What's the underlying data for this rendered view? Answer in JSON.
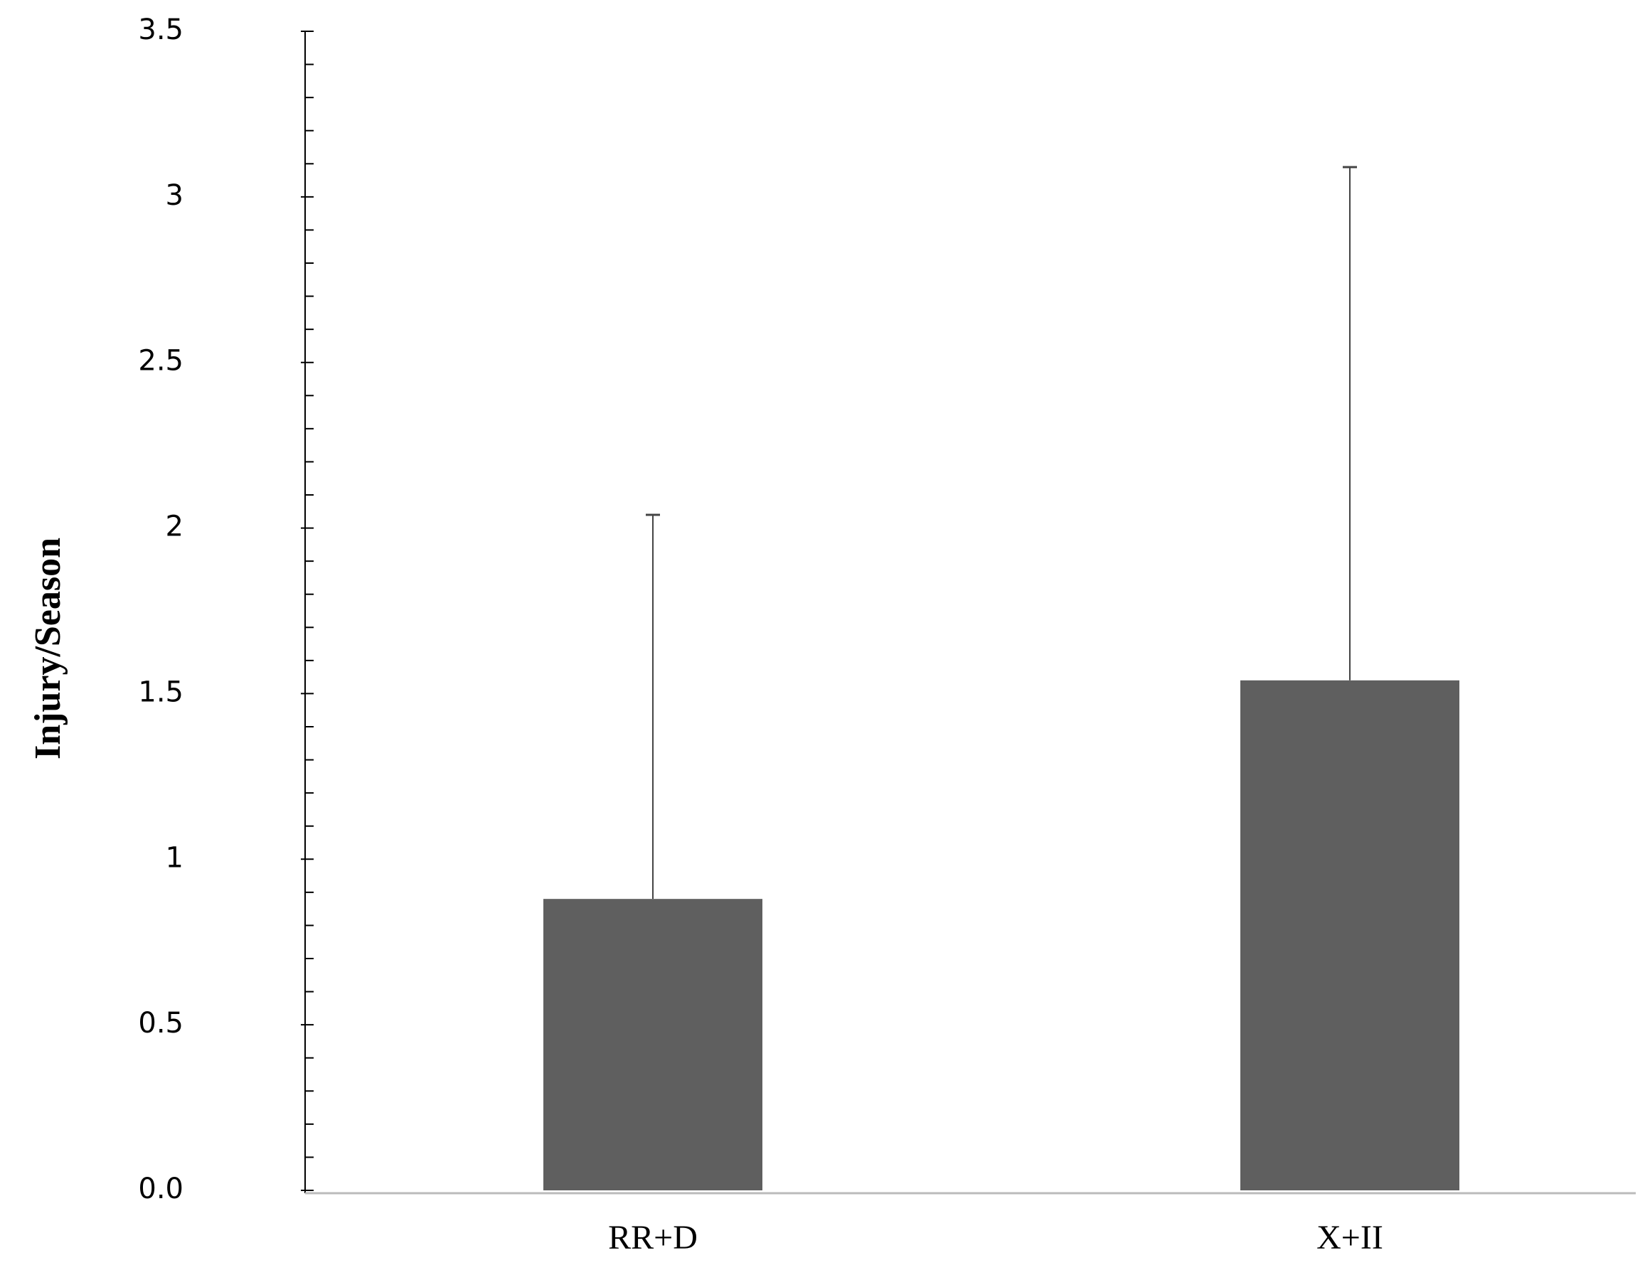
{
  "chart_data": {
    "type": "bar",
    "y_label": "Injury/Season",
    "categories": [
      "RR+D",
      "X+II"
    ],
    "values": [
      0.88,
      1.54
    ],
    "errors": [
      1.16,
      1.55
    ],
    "color": "#5f5f5f",
    "ylim": [
      0,
      3.5
    ],
    "yticks": [
      {
        "value": 0,
        "label": "0.0"
      },
      0.5,
      1,
      1.5,
      2,
      2.5,
      3,
      3.5
    ],
    "yticks_minor": [
      0.1,
      0.2,
      0.3,
      0.4,
      0.6,
      0.7,
      0.8,
      0.9,
      1.1,
      1.2,
      1.3,
      1.4,
      1.6,
      1.7,
      1.8,
      1.9,
      2.1,
      2.2,
      2.3,
      2.4,
      2.6,
      2.7,
      2.8,
      2.9,
      3.1,
      3.2,
      3.3,
      3.4
    ],
    "grid": false
  }
}
